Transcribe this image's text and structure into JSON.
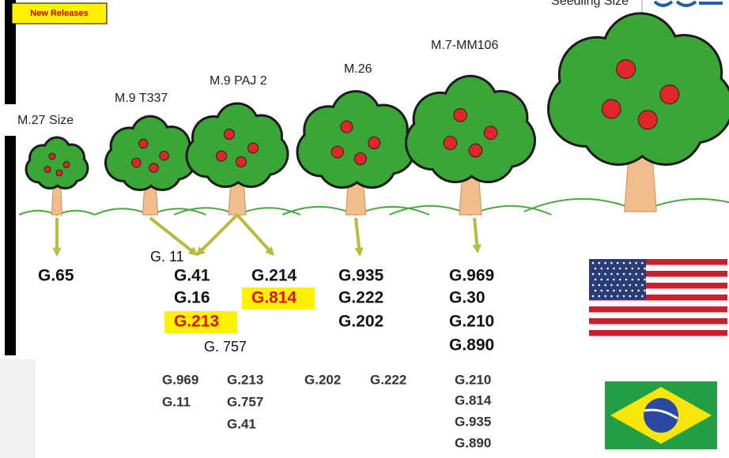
{
  "header": {
    "badge": "New Releases",
    "seedling_label": "Seedling Size"
  },
  "trees": [
    {
      "label": "M.27 Size"
    },
    {
      "label": "M.9 T337"
    },
    {
      "label": "M.9 PAJ 2"
    },
    {
      "label": "M.26"
    },
    {
      "label": "M.7-MM106"
    }
  ],
  "usa": [
    {
      "text": "G.65"
    },
    {
      "text": "G. 11"
    },
    {
      "text": "G.41"
    },
    {
      "text": "G.16"
    },
    {
      "text": "G.213",
      "highlighted": true
    },
    {
      "text": "G.214"
    },
    {
      "text": "G.814",
      "highlighted": true
    },
    {
      "text": "G. 757"
    },
    {
      "text": "G.935"
    },
    {
      "text": "G.222"
    },
    {
      "text": "G.202"
    },
    {
      "text": "G.969"
    },
    {
      "text": "G.30"
    },
    {
      "text": "G.210"
    },
    {
      "text": "G.890"
    }
  ],
  "brazil": [
    "G.969",
    "G.11",
    "G.213",
    "G.757",
    "G.41",
    "G.202",
    "G.222",
    "G.210",
    "G.814",
    "G.935",
    "G.890"
  ]
}
